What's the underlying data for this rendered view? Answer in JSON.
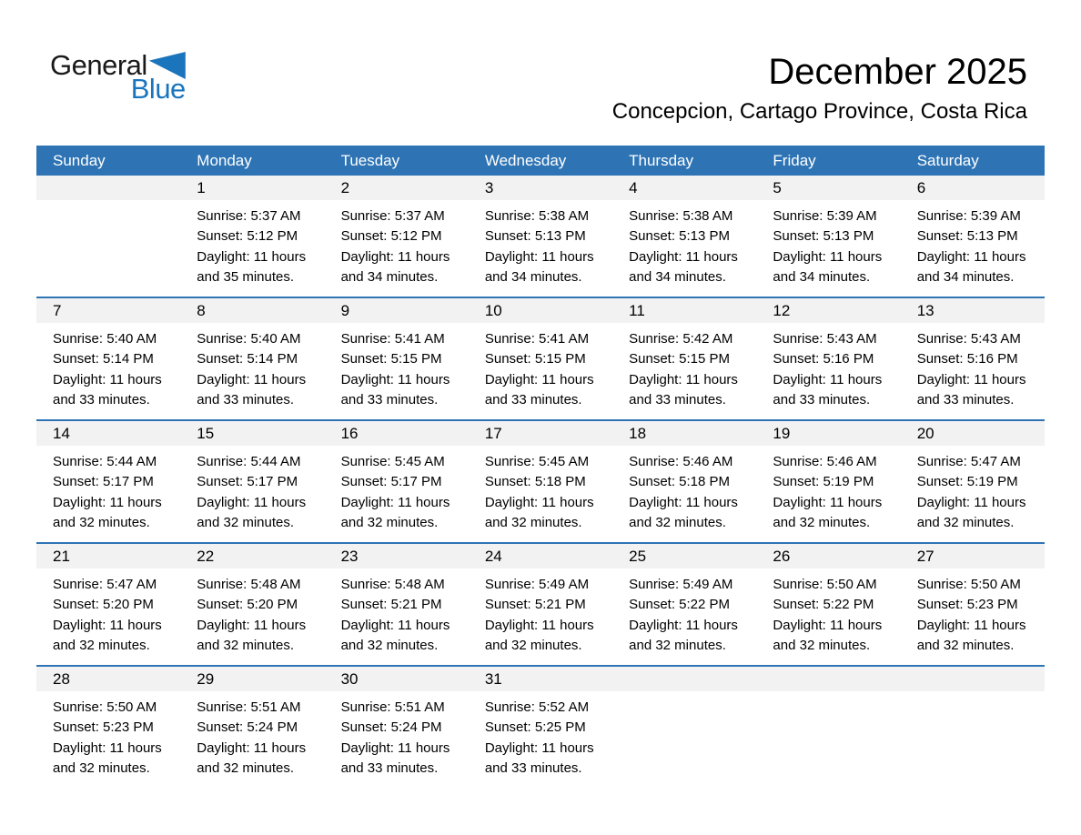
{
  "logo": {
    "general": "General",
    "blue": "Blue"
  },
  "header": {
    "title": "December 2025",
    "subtitle": "Concepcion, Cartago Province, Costa Rica"
  },
  "colors": {
    "header_blue": "#2E74B5",
    "row_divider_blue": "#2E74B5",
    "band_gray": "#F2F2F2",
    "logo_blue": "#1B75BC",
    "logo_dark": "#1A1A1A",
    "header_text": "#FFFFFF",
    "text_black": "#000000"
  },
  "calendar": {
    "weekdays": [
      "Sunday",
      "Monday",
      "Tuesday",
      "Wednesday",
      "Thursday",
      "Friday",
      "Saturday"
    ],
    "weeks": [
      [
        null,
        {
          "day": "1",
          "lines": [
            "Sunrise: 5:37 AM",
            "Sunset: 5:12 PM",
            "Daylight: 11 hours",
            "and 35 minutes."
          ]
        },
        {
          "day": "2",
          "lines": [
            "Sunrise: 5:37 AM",
            "Sunset: 5:12 PM",
            "Daylight: 11 hours",
            "and 34 minutes."
          ]
        },
        {
          "day": "3",
          "lines": [
            "Sunrise: 5:38 AM",
            "Sunset: 5:13 PM",
            "Daylight: 11 hours",
            "and 34 minutes."
          ]
        },
        {
          "day": "4",
          "lines": [
            "Sunrise: 5:38 AM",
            "Sunset: 5:13 PM",
            "Daylight: 11 hours",
            "and 34 minutes."
          ]
        },
        {
          "day": "5",
          "lines": [
            "Sunrise: 5:39 AM",
            "Sunset: 5:13 PM",
            "Daylight: 11 hours",
            "and 34 minutes."
          ]
        },
        {
          "day": "6",
          "lines": [
            "Sunrise: 5:39 AM",
            "Sunset: 5:13 PM",
            "Daylight: 11 hours",
            "and 34 minutes."
          ]
        }
      ],
      [
        {
          "day": "7",
          "lines": [
            "Sunrise: 5:40 AM",
            "Sunset: 5:14 PM",
            "Daylight: 11 hours",
            "and 33 minutes."
          ]
        },
        {
          "day": "8",
          "lines": [
            "Sunrise: 5:40 AM",
            "Sunset: 5:14 PM",
            "Daylight: 11 hours",
            "and 33 minutes."
          ]
        },
        {
          "day": "9",
          "lines": [
            "Sunrise: 5:41 AM",
            "Sunset: 5:15 PM",
            "Daylight: 11 hours",
            "and 33 minutes."
          ]
        },
        {
          "day": "10",
          "lines": [
            "Sunrise: 5:41 AM",
            "Sunset: 5:15 PM",
            "Daylight: 11 hours",
            "and 33 minutes."
          ]
        },
        {
          "day": "11",
          "lines": [
            "Sunrise: 5:42 AM",
            "Sunset: 5:15 PM",
            "Daylight: 11 hours",
            "and 33 minutes."
          ]
        },
        {
          "day": "12",
          "lines": [
            "Sunrise: 5:43 AM",
            "Sunset: 5:16 PM",
            "Daylight: 11 hours",
            "and 33 minutes."
          ]
        },
        {
          "day": "13",
          "lines": [
            "Sunrise: 5:43 AM",
            "Sunset: 5:16 PM",
            "Daylight: 11 hours",
            "and 33 minutes."
          ]
        }
      ],
      [
        {
          "day": "14",
          "lines": [
            "Sunrise: 5:44 AM",
            "Sunset: 5:17 PM",
            "Daylight: 11 hours",
            "and 32 minutes."
          ]
        },
        {
          "day": "15",
          "lines": [
            "Sunrise: 5:44 AM",
            "Sunset: 5:17 PM",
            "Daylight: 11 hours",
            "and 32 minutes."
          ]
        },
        {
          "day": "16",
          "lines": [
            "Sunrise: 5:45 AM",
            "Sunset: 5:17 PM",
            "Daylight: 11 hours",
            "and 32 minutes."
          ]
        },
        {
          "day": "17",
          "lines": [
            "Sunrise: 5:45 AM",
            "Sunset: 5:18 PM",
            "Daylight: 11 hours",
            "and 32 minutes."
          ]
        },
        {
          "day": "18",
          "lines": [
            "Sunrise: 5:46 AM",
            "Sunset: 5:18 PM",
            "Daylight: 11 hours",
            "and 32 minutes."
          ]
        },
        {
          "day": "19",
          "lines": [
            "Sunrise: 5:46 AM",
            "Sunset: 5:19 PM",
            "Daylight: 11 hours",
            "and 32 minutes."
          ]
        },
        {
          "day": "20",
          "lines": [
            "Sunrise: 5:47 AM",
            "Sunset: 5:19 PM",
            "Daylight: 11 hours",
            "and 32 minutes."
          ]
        }
      ],
      [
        {
          "day": "21",
          "lines": [
            "Sunrise: 5:47 AM",
            "Sunset: 5:20 PM",
            "Daylight: 11 hours",
            "and 32 minutes."
          ]
        },
        {
          "day": "22",
          "lines": [
            "Sunrise: 5:48 AM",
            "Sunset: 5:20 PM",
            "Daylight: 11 hours",
            "and 32 minutes."
          ]
        },
        {
          "day": "23",
          "lines": [
            "Sunrise: 5:48 AM",
            "Sunset: 5:21 PM",
            "Daylight: 11 hours",
            "and 32 minutes."
          ]
        },
        {
          "day": "24",
          "lines": [
            "Sunrise: 5:49 AM",
            "Sunset: 5:21 PM",
            "Daylight: 11 hours",
            "and 32 minutes."
          ]
        },
        {
          "day": "25",
          "lines": [
            "Sunrise: 5:49 AM",
            "Sunset: 5:22 PM",
            "Daylight: 11 hours",
            "and 32 minutes."
          ]
        },
        {
          "day": "26",
          "lines": [
            "Sunrise: 5:50 AM",
            "Sunset: 5:22 PM",
            "Daylight: 11 hours",
            "and 32 minutes."
          ]
        },
        {
          "day": "27",
          "lines": [
            "Sunrise: 5:50 AM",
            "Sunset: 5:23 PM",
            "Daylight: 11 hours",
            "and 32 minutes."
          ]
        }
      ],
      [
        {
          "day": "28",
          "lines": [
            "Sunrise: 5:50 AM",
            "Sunset: 5:23 PM",
            "Daylight: 11 hours",
            "and 32 minutes."
          ]
        },
        {
          "day": "29",
          "lines": [
            "Sunrise: 5:51 AM",
            "Sunset: 5:24 PM",
            "Daylight: 11 hours",
            "and 32 minutes."
          ]
        },
        {
          "day": "30",
          "lines": [
            "Sunrise: 5:51 AM",
            "Sunset: 5:24 PM",
            "Daylight: 11 hours",
            "and 33 minutes."
          ]
        },
        {
          "day": "31",
          "lines": [
            "Sunrise: 5:52 AM",
            "Sunset: 5:25 PM",
            "Daylight: 11 hours",
            "and 33 minutes."
          ]
        },
        null,
        null,
        null
      ]
    ]
  }
}
